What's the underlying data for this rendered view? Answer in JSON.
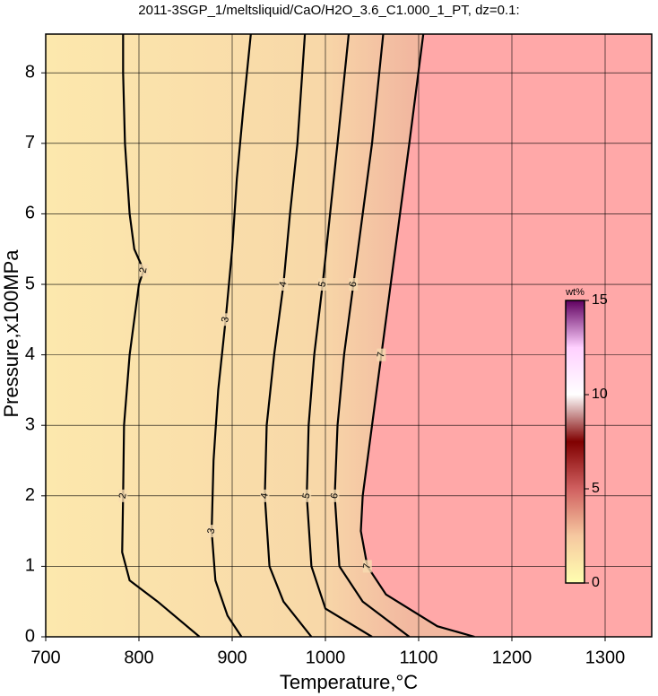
{
  "chart_data": {
    "type": "contour",
    "title": "2011-3SGP_1/meltsliquid/CaO/H2O_3.6_C1.000_1_PT, dz=0.1:",
    "x_label": "Temperature,°C",
    "y_label": "Pressure,x100MPa",
    "xlim": [
      700,
      1350
    ],
    "ylim": [
      0,
      8.55
    ],
    "xticks": [
      700,
      800,
      900,
      1000,
      1100,
      1200,
      1300
    ],
    "yticks": [
      0,
      1,
      2,
      3,
      4,
      5,
      6,
      7,
      8
    ],
    "grid": true,
    "contours": [
      {
        "level": 2,
        "x": [
          865,
          820,
          790,
          782,
          783,
          784,
          790,
          800,
          805,
          795,
          790,
          785,
          783,
          783
        ],
        "y": [
          0,
          0.5,
          0.8,
          1.2,
          2,
          3,
          4,
          5,
          5.2,
          5.5,
          6,
          7,
          8,
          8.55
        ]
      },
      {
        "level": 3,
        "x": [
          910,
          895,
          882,
          878,
          880,
          885,
          893,
          900,
          905,
          912,
          920
        ],
        "y": [
          0,
          0.3,
          0.8,
          1.5,
          2.5,
          3.5,
          4.5,
          5.5,
          6.5,
          7.5,
          8.55
        ]
      },
      {
        "level": 4,
        "x": [
          985,
          955,
          940,
          935,
          937,
          945,
          955,
          962,
          970,
          978
        ],
        "y": [
          0,
          0.5,
          1,
          2,
          3,
          4,
          5,
          6,
          7,
          8.55
        ]
      },
      {
        "level": 5,
        "x": [
          1050,
          1000,
          985,
          980,
          982,
          988,
          997,
          1005,
          1013,
          1025
        ],
        "y": [
          0,
          0.4,
          1,
          2,
          3,
          4,
          5,
          6,
          7,
          8.55
        ]
      },
      {
        "level": 6,
        "x": [
          1090,
          1040,
          1015,
          1010,
          1013,
          1020,
          1030,
          1040,
          1050,
          1062
        ],
        "y": [
          0,
          0.5,
          1,
          2,
          3,
          4,
          5,
          6,
          7,
          8.55
        ]
      },
      {
        "level": 7,
        "x": [
          1160,
          1120,
          1065,
          1045,
          1038,
          1040,
          1050,
          1060,
          1070,
          1080,
          1090,
          1105
        ],
        "y": [
          0,
          0.15,
          0.6,
          1,
          1.5,
          2,
          3,
          4,
          5,
          6,
          7,
          8.55
        ]
      }
    ],
    "saturated_color": "#ffa8a8",
    "colorbar": {
      "label": "wt%",
      "lim": [
        0,
        15
      ],
      "ticks": [
        0,
        5,
        10,
        15
      ],
      "colors": [
        "#ffffb0",
        "#f6c8a0",
        "#d06060",
        "#800000",
        "#ffffff",
        "#ffd0ff",
        "#600060"
      ]
    }
  }
}
